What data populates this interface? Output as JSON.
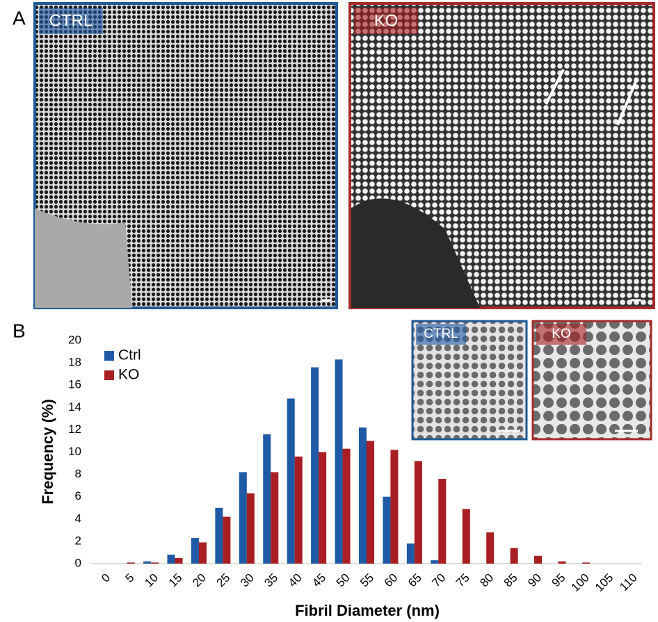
{
  "panel_a": {
    "label": "A",
    "images": [
      "CTRL",
      "KO"
    ]
  },
  "chart_data": {
    "type": "bar",
    "panel_label": "B",
    "insets": [
      "CTRL",
      "KO"
    ],
    "x_label": "Fibril Diameter (nm)",
    "y_label": "Frequency (%)",
    "categories": [
      "0",
      "5",
      "10",
      "15",
      "20",
      "25",
      "30",
      "35",
      "40",
      "45",
      "50",
      "55",
      "60",
      "65",
      "70",
      "75",
      "80",
      "85",
      "90",
      "95",
      "100",
      "105",
      "110"
    ],
    "series": [
      {
        "name": "Ctrl",
        "color": "#1f5aa6",
        "values": [
          0,
          0,
          0.2,
          0.8,
          2.3,
          5.0,
          8.2,
          11.6,
          14.8,
          17.6,
          18.3,
          12.2,
          6.0,
          1.8,
          0.3,
          0,
          0,
          0,
          0,
          0,
          0,
          0,
          0
        ]
      },
      {
        "name": "KO",
        "color": "#a81e22",
        "values": [
          0,
          0.1,
          0.1,
          0.5,
          1.9,
          4.2,
          6.3,
          8.2,
          9.6,
          10.0,
          10.3,
          11.0,
          10.2,
          9.2,
          7.6,
          4.9,
          2.8,
          1.4,
          0.7,
          0.2,
          0.1,
          0,
          0
        ]
      }
    ],
    "ylim": [
      0,
      20
    ],
    "yticks": [
      0,
      2,
      4,
      6,
      8,
      10,
      12,
      14,
      16,
      18,
      20
    ],
    "legend": "upper left"
  }
}
